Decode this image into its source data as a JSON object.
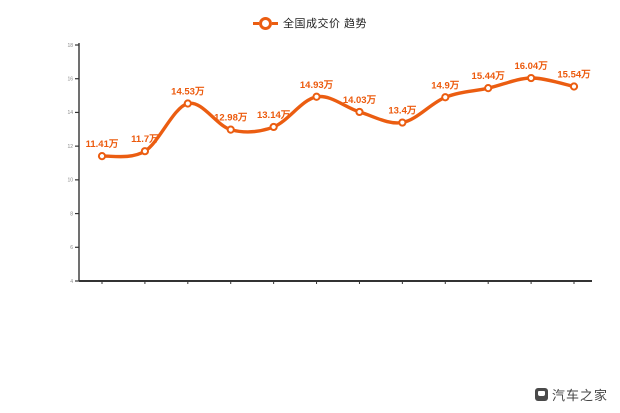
{
  "legend": {
    "series_label": "全国成交价 趋势"
  },
  "watermark": {
    "text": "汽车之家"
  },
  "colors": {
    "line": "#eb5d11",
    "point_label": "#ec5a0d",
    "marker_fill": "#ffffff",
    "axis": "#333333",
    "tick_label": "#8a8a8a",
    "legend_text": "#222222",
    "watermark_text": "#454545"
  },
  "chart_data": {
    "type": "line",
    "title": "",
    "xlabel": "",
    "ylabel": "",
    "unit": "万",
    "grid": false,
    "legend_position": "top-center",
    "series": [
      {
        "name": "全国成交价",
        "values": [
          11.41,
          11.7,
          14.53,
          12.98,
          13.14,
          14.93,
          14.03,
          13.4,
          14.9,
          15.44,
          16.04,
          15.54
        ]
      }
    ],
    "point_labels": [
      "11.41万",
      "11.7万",
      "14.53万",
      "12.98万",
      "13.14万",
      "14.93万",
      "14.03万",
      "13.4万",
      "14.9万",
      "15.44万",
      "16.04万",
      "15.54万"
    ],
    "x_labels_visible": false,
    "ylim": [
      4,
      18
    ],
    "yticks": [
      18,
      16,
      14,
      12,
      10,
      8,
      6,
      4
    ]
  }
}
